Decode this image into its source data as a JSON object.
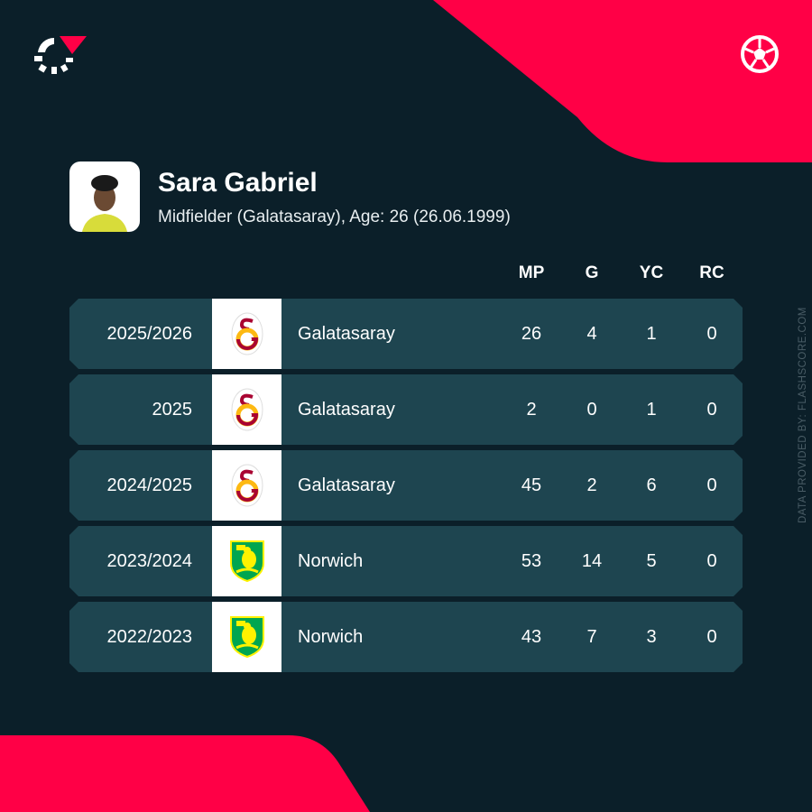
{
  "colors": {
    "background": "#0b1f29",
    "accent": "#ff0046",
    "row": "#1e4550"
  },
  "icons": {
    "brand": "flashscore-logo-icon",
    "sport": "football-icon"
  },
  "player": {
    "name": "Sara Gabriel",
    "details": "Midfielder (Galatasaray), Age: 26 (26.06.1999)"
  },
  "columns": [
    "MP",
    "G",
    "YC",
    "RC"
  ],
  "rows": [
    {
      "season": "2025/2026",
      "team": "Galatasaray",
      "crest": "galatasaray",
      "mp": "26",
      "g": "4",
      "yc": "1",
      "rc": "0"
    },
    {
      "season": "2025",
      "team": "Galatasaray",
      "crest": "galatasaray",
      "mp": "2",
      "g": "0",
      "yc": "1",
      "rc": "0"
    },
    {
      "season": "2024/2025",
      "team": "Galatasaray",
      "crest": "galatasaray",
      "mp": "45",
      "g": "2",
      "yc": "6",
      "rc": "0"
    },
    {
      "season": "2023/2024",
      "team": "Norwich",
      "crest": "norwich",
      "mp": "53",
      "g": "14",
      "yc": "5",
      "rc": "0"
    },
    {
      "season": "2022/2023",
      "team": "Norwich",
      "crest": "norwich",
      "mp": "43",
      "g": "7",
      "yc": "3",
      "rc": "0"
    }
  ],
  "credit": "DATA PROVIDED BY: FLASHSCORE.COM"
}
